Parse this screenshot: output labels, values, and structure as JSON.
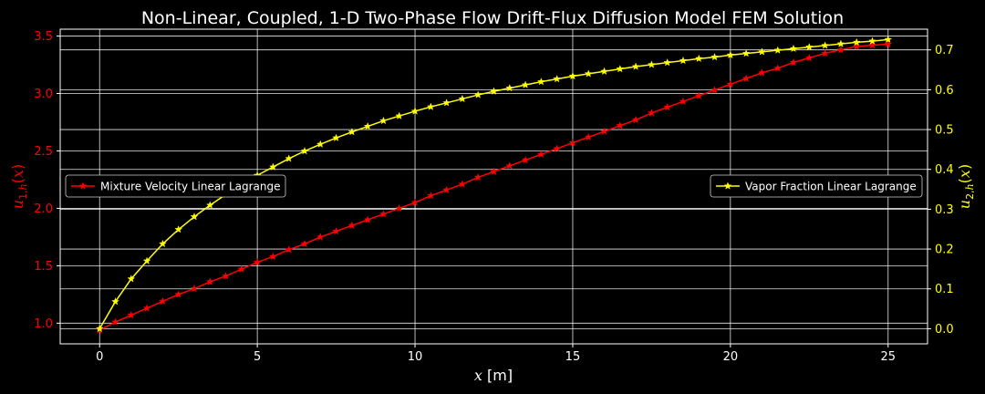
{
  "chart_data": {
    "type": "line",
    "title": "Non-Linear, Coupled, 1-D Two-Phase Flow Drift-Flux Diffusion Model FEM Solution",
    "xlabel": "x [m]",
    "ylabel_left": "u1,h(x)",
    "ylabel_right": "u2,h(x)",
    "xlim": [
      -1.25,
      26.25
    ],
    "ylim_left": [
      0.82,
      3.56
    ],
    "ylim_right": [
      -0.038,
      0.752
    ],
    "xticks": [
      "0",
      "5",
      "10",
      "15",
      "20",
      "25"
    ],
    "yticks_left": [
      "1.0",
      "1.5",
      "2.0",
      "2.5",
      "3.0",
      "3.5"
    ],
    "yticks_right": [
      "0.0",
      "0.1",
      "0.2",
      "0.3",
      "0.4",
      "0.5",
      "0.6",
      "0.7"
    ],
    "grid": true,
    "x": [
      0,
      0.5,
      1,
      1.5,
      2,
      2.5,
      3,
      3.5,
      4,
      4.5,
      5,
      5.5,
      6,
      6.5,
      7,
      7.5,
      8,
      8.5,
      9,
      9.5,
      10,
      10.5,
      11,
      11.5,
      12,
      12.5,
      13,
      13.5,
      14,
      14.5,
      15,
      15.5,
      16,
      16.5,
      17,
      17.5,
      18,
      18.5,
      19,
      19.5,
      20,
      20.5,
      21,
      21.5,
      22,
      22.5,
      23,
      23.5,
      24,
      24.5,
      25
    ],
    "series": [
      {
        "name": "Mixture Velocity Linear Lagrange",
        "axis": "left",
        "color": "#ff0000",
        "marker": "star",
        "values": [
          0.94,
          1.01,
          1.07,
          1.13,
          1.19,
          1.25,
          1.3,
          1.36,
          1.41,
          1.47,
          1.53,
          1.58,
          1.64,
          1.69,
          1.75,
          1.8,
          1.85,
          1.9,
          1.95,
          2.0,
          2.05,
          2.11,
          2.16,
          2.21,
          2.27,
          2.32,
          2.37,
          2.42,
          2.47,
          2.52,
          2.57,
          2.62,
          2.67,
          2.72,
          2.77,
          2.83,
          2.88,
          2.93,
          2.98,
          3.03,
          3.08,
          3.13,
          3.18,
          3.22,
          3.27,
          3.31,
          3.35,
          3.38,
          3.41,
          3.42,
          3.43
        ]
      },
      {
        "name": "Vapor Fraction Linear Lagrange",
        "axis": "right",
        "color": "#ffff00",
        "marker": "star",
        "values": [
          0.0,
          0.068,
          0.125,
          0.17,
          0.213,
          0.249,
          0.281,
          0.31,
          0.337,
          0.362,
          0.385,
          0.406,
          0.427,
          0.446,
          0.463,
          0.479,
          0.494,
          0.508,
          0.522,
          0.534,
          0.546,
          0.557,
          0.567,
          0.577,
          0.587,
          0.596,
          0.604,
          0.612,
          0.62,
          0.627,
          0.634,
          0.64,
          0.646,
          0.652,
          0.658,
          0.663,
          0.668,
          0.673,
          0.678,
          0.682,
          0.687,
          0.691,
          0.695,
          0.699,
          0.703,
          0.707,
          0.711,
          0.715,
          0.719,
          0.722,
          0.726
        ]
      }
    ],
    "legends": [
      {
        "text": "Mixture Velocity Linear Lagrange",
        "placement": "center-left",
        "color": "#ff0000"
      },
      {
        "text": "Vapor Fraction Linear Lagrange",
        "placement": "center-right",
        "color": "#ffff00"
      }
    ],
    "colors": {
      "background": "#000000",
      "axes": "#ffffff",
      "grid": "#ffffff",
      "left_axis": "#ff0000",
      "right_axis": "#ffff00"
    }
  }
}
